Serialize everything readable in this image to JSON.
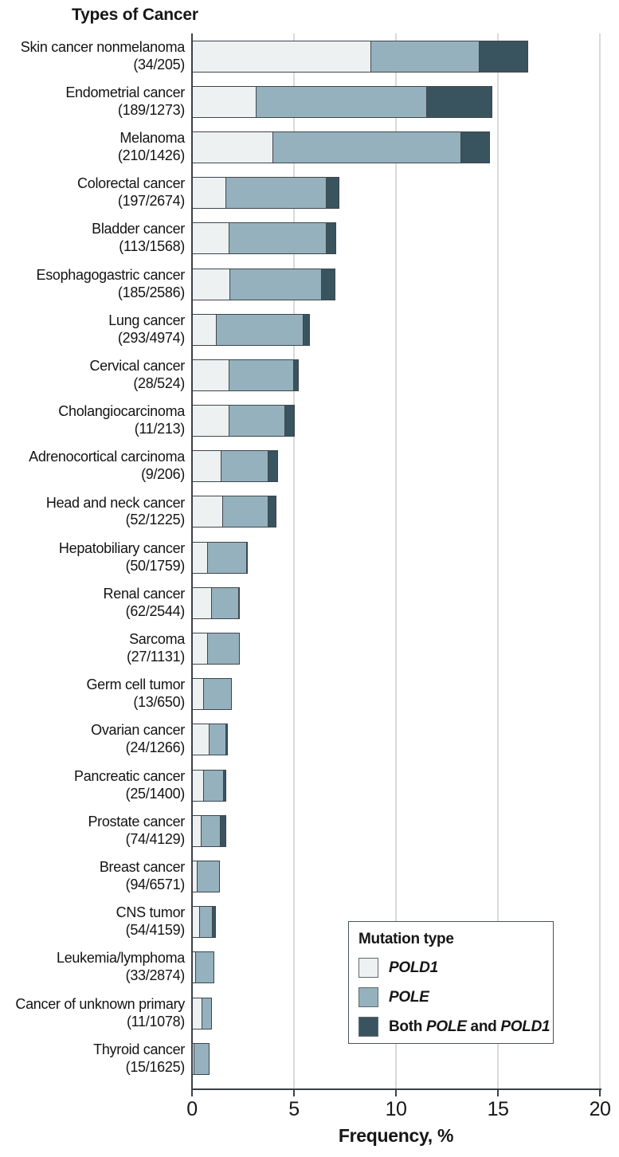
{
  "colors": {
    "pold1": "#EDF1F2",
    "pole": "#95B1BE",
    "both": "#39545F",
    "bar_border": "#3E464C",
    "grid": "#D9D9D9",
    "axis": "#3A4146",
    "text": "#161616"
  },
  "legend": {
    "title": "Mutation type",
    "items": [
      {
        "key": "pold1",
        "runs": [
          {
            "t": "POLD1",
            "i": true
          }
        ]
      },
      {
        "key": "pole",
        "runs": [
          {
            "t": "POLE",
            "i": true
          }
        ]
      },
      {
        "key": "both",
        "runs": [
          {
            "t": "Both ",
            "i": false
          },
          {
            "t": "POLE",
            "i": true
          },
          {
            "t": " and ",
            "i": false
          },
          {
            "t": "POLD1",
            "i": true
          }
        ]
      }
    ]
  },
  "chart_data": {
    "type": "bar",
    "orientation": "horizontal",
    "stacked": true,
    "title": "Types of Cancer",
    "xlabel": "Frequency, %",
    "xlim": [
      0,
      20
    ],
    "xticks": [
      0,
      5,
      10,
      15,
      20
    ],
    "grid": "vertical",
    "legend_position": "inside-bottom-right",
    "series": [
      {
        "key": "pold1",
        "name": "POLD1"
      },
      {
        "key": "pole",
        "name": "POLE"
      },
      {
        "key": "both",
        "name": "Both POLE and POLD1"
      }
    ],
    "rows": [
      {
        "label": "Skin cancer nonmelanoma",
        "count": "(34/205)",
        "values": [
          8.8,
          5.4,
          2.4
        ]
      },
      {
        "label": "Endometrial cancer",
        "count": "(189/1273)",
        "values": [
          3.2,
          8.4,
          3.25
        ]
      },
      {
        "label": "Melanoma",
        "count": "(210/1426)",
        "values": [
          4.0,
          9.3,
          1.45
        ]
      },
      {
        "label": "Colorectal cancer",
        "count": "(197/2674)",
        "values": [
          1.7,
          5.0,
          0.65
        ]
      },
      {
        "label": "Bladder cancer",
        "count": "(113/1568)",
        "values": [
          1.85,
          4.85,
          0.5
        ]
      },
      {
        "label": "Esophagogastric cancer",
        "count": "(185/2586)",
        "values": [
          1.9,
          4.55,
          0.7
        ]
      },
      {
        "label": "Lung cancer",
        "count": "(293/4974)",
        "values": [
          1.25,
          4.3,
          0.35
        ]
      },
      {
        "label": "Cervical cancer",
        "count": "(28/524)",
        "values": [
          1.85,
          3.25,
          0.25
        ]
      },
      {
        "label": "Cholangiocarcinoma",
        "count": "(11/213)",
        "values": [
          1.85,
          2.8,
          0.5
        ]
      },
      {
        "label": "Adrenocortical carcinoma",
        "count": "(9/206)",
        "values": [
          1.45,
          2.4,
          0.5
        ]
      },
      {
        "label": "Head and neck cancer",
        "count": "(52/1225)",
        "values": [
          1.55,
          2.3,
          0.4
        ]
      },
      {
        "label": "Hepatobiliary cancer",
        "count": "(50/1759)",
        "values": [
          0.8,
          2.0,
          0.05
        ]
      },
      {
        "label": "Renal cancer",
        "count": "(62/2544)",
        "values": [
          1.0,
          1.4,
          0.05
        ]
      },
      {
        "label": "Sarcoma",
        "count": "(27/1131)",
        "values": [
          0.8,
          1.6,
          0
        ]
      },
      {
        "label": "Germ cell tumor",
        "count": "(13/650)",
        "values": [
          0.6,
          1.4,
          0
        ]
      },
      {
        "label": "Ovarian cancer",
        "count": "(24/1266)",
        "values": [
          0.9,
          0.85,
          0.15
        ]
      },
      {
        "label": "Pancreatic cancer",
        "count": "(25/1400)",
        "values": [
          0.6,
          1.05,
          0.15
        ]
      },
      {
        "label": "Prostate cancer",
        "count": "(74/4129)",
        "values": [
          0.5,
          1.0,
          0.3
        ]
      },
      {
        "label": "Breast cancer",
        "count": "(94/6571)",
        "values": [
          0.3,
          1.13,
          0
        ]
      },
      {
        "label": "CNS tumor",
        "count": "(54/4159)",
        "values": [
          0.4,
          0.7,
          0.2
        ]
      },
      {
        "label": "Leukemia/lymphoma",
        "count": "(33/2874)",
        "values": [
          0.2,
          0.95,
          0
        ]
      },
      {
        "label": "Cancer of unknown primary",
        "count": "(11/1078)",
        "values": [
          0.55,
          0.47,
          0
        ]
      },
      {
        "label": "Thyroid cancer",
        "count": "(15/1625)",
        "values": [
          0.13,
          0.79,
          0
        ]
      }
    ]
  }
}
